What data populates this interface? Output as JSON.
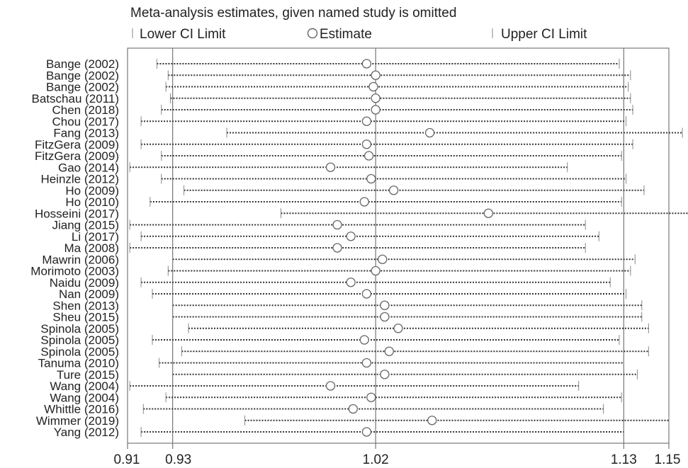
{
  "chart_data": {
    "type": "forest",
    "title": "Meta-analysis estimates, given named study is omitted",
    "legend": {
      "lower": "Lower CI Limit",
      "estimate": "Estimate",
      "upper": "Upper CI Limit"
    },
    "xlim": [
      0.91,
      1.15
    ],
    "reference_lines": [
      0.93,
      1.02,
      1.13
    ],
    "xticks": [
      {
        "value": 0.91,
        "label": "0.91"
      },
      {
        "value": 0.93,
        "label": "0.93"
      },
      {
        "value": 1.02,
        "label": "1.02"
      },
      {
        "value": 1.13,
        "label": "1.13"
      },
      {
        "value": 1.15,
        "label": "1.15"
      }
    ],
    "studies": [
      {
        "label": "Bange (2002)",
        "lower": 0.923,
        "estimate": 1.016,
        "upper": 1.128
      },
      {
        "label": "Bange (2002)",
        "lower": 0.928,
        "estimate": 1.02,
        "upper": 1.133
      },
      {
        "label": "Bange (2002)",
        "lower": 0.927,
        "estimate": 1.019,
        "upper": 1.132
      },
      {
        "label": "Batschau (2011)",
        "lower": 0.929,
        "estimate": 1.02,
        "upper": 1.133
      },
      {
        "label": "Chen (2018)",
        "lower": 0.925,
        "estimate": 1.02,
        "upper": 1.134
      },
      {
        "label": "Chou (2017)",
        "lower": 0.916,
        "estimate": 1.016,
        "upper": 1.131
      },
      {
        "label": "Fang (2013)",
        "lower": 0.954,
        "estimate": 1.044,
        "upper": 1.156
      },
      {
        "label": "FitzGera (2009)",
        "lower": 0.916,
        "estimate": 1.016,
        "upper": 1.134
      },
      {
        "label": "FitzGera (2009)",
        "lower": 0.925,
        "estimate": 1.017,
        "upper": 1.129
      },
      {
        "label": "Gao (2014)",
        "lower": 0.911,
        "estimate": 1.0,
        "upper": 1.105
      },
      {
        "label": "Heinzle (2012)",
        "lower": 0.925,
        "estimate": 1.018,
        "upper": 1.131
      },
      {
        "label": "Ho (2009)",
        "lower": 0.935,
        "estimate": 1.028,
        "upper": 1.139
      },
      {
        "label": "Ho (2010)",
        "lower": 0.92,
        "estimate": 1.015,
        "upper": 1.129
      },
      {
        "label": "Hosseini (2017)",
        "lower": 0.978,
        "estimate": 1.07,
        "upper": 1.174
      },
      {
        "label": "Jiang (2015)",
        "lower": 0.911,
        "estimate": 1.003,
        "upper": 1.113
      },
      {
        "label": "Li (2017)",
        "lower": 0.916,
        "estimate": 1.009,
        "upper": 1.119
      },
      {
        "label": "Ma (2008)",
        "lower": 0.911,
        "estimate": 1.003,
        "upper": 1.113
      },
      {
        "label": "Mawrin (2006)",
        "lower": 0.93,
        "estimate": 1.023,
        "upper": 1.135
      },
      {
        "label": "Morimoto (2003)",
        "lower": 0.928,
        "estimate": 1.02,
        "upper": 1.133
      },
      {
        "label": "Naidu (2009)",
        "lower": 0.916,
        "estimate": 1.009,
        "upper": 1.124
      },
      {
        "label": "Nan (2009)",
        "lower": 0.921,
        "estimate": 1.016,
        "upper": 1.131
      },
      {
        "label": "Shen (2013)",
        "lower": 0.93,
        "estimate": 1.024,
        "upper": 1.138
      },
      {
        "label": "Sheu (2015)",
        "lower": 0.93,
        "estimate": 1.024,
        "upper": 1.138
      },
      {
        "label": "Spinola (2005)",
        "lower": 0.937,
        "estimate": 1.03,
        "upper": 1.141
      },
      {
        "label": "Spinola (2005)",
        "lower": 0.921,
        "estimate": 1.015,
        "upper": 1.128
      },
      {
        "label": "Spinola (2005)",
        "lower": 0.934,
        "estimate": 1.026,
        "upper": 1.141
      },
      {
        "label": "Tanuma (2010)",
        "lower": 0.924,
        "estimate": 1.016,
        "upper": 1.13
      },
      {
        "label": "Ture (2015)",
        "lower": 0.93,
        "estimate": 1.024,
        "upper": 1.136
      },
      {
        "label": "Wang (2004)",
        "lower": 0.911,
        "estimate": 1.0,
        "upper": 1.11
      },
      {
        "label": "Wang (2004)",
        "lower": 0.927,
        "estimate": 1.018,
        "upper": 1.129
      },
      {
        "label": "Whittle (2016)",
        "lower": 0.917,
        "estimate": 1.01,
        "upper": 1.121
      },
      {
        "label": "Wimmer (2019)",
        "lower": 0.962,
        "estimate": 1.045,
        "upper": 1.15
      },
      {
        "label": "Yang (2012)",
        "lower": 0.916,
        "estimate": 1.016,
        "upper": 1.13
      }
    ]
  }
}
